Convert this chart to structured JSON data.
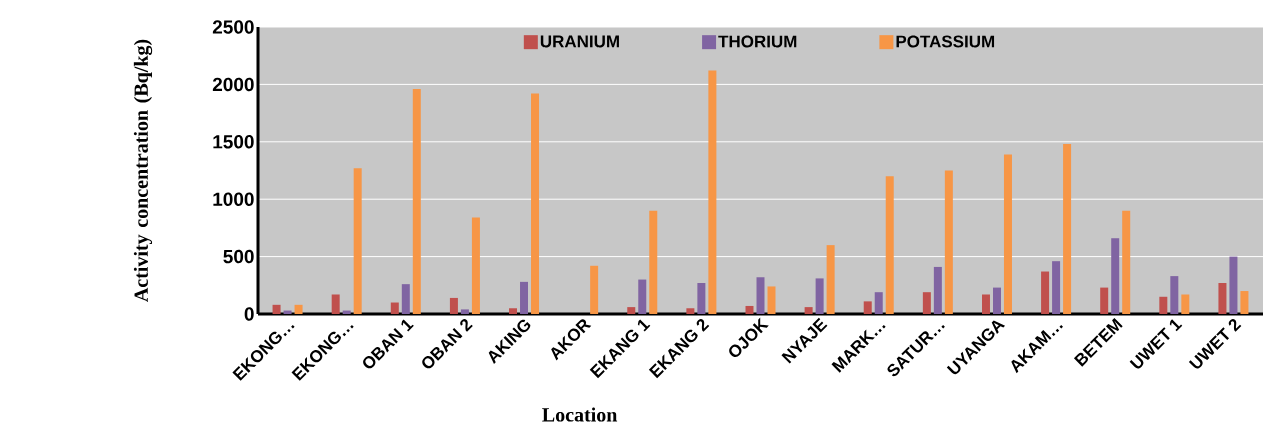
{
  "chart_data": {
    "type": "bar",
    "xlabel": "Location",
    "ylabel": "Activity  concentration (Bq/kg)",
    "categories": [
      "EKONG…",
      "EKONG…",
      "OBAN 1",
      "OBAN 2",
      "AKING",
      "AKOR",
      "EKANG 1",
      "EKANG 2",
      "OJOK",
      "NYAJE",
      "MARK…",
      "SATUR…",
      "UYANGA",
      "AKAM…",
      "BETEM",
      "UWET 1",
      "UWET 2"
    ],
    "series": [
      {
        "name": "URANIUM",
        "color": "#c0504d",
        "values": [
          80,
          170,
          100,
          140,
          50,
          0,
          60,
          50,
          70,
          60,
          110,
          190,
          170,
          370,
          230,
          150,
          270
        ]
      },
      {
        "name": "THORIUM",
        "color": "#8064a2",
        "values": [
          30,
          30,
          260,
          40,
          280,
          0,
          300,
          270,
          320,
          310,
          190,
          410,
          230,
          460,
          660,
          330,
          500
        ]
      },
      {
        "name": "POTASSIUM",
        "color": "#f79646",
        "values": [
          80,
          1270,
          1960,
          840,
          1920,
          420,
          900,
          2120,
          240,
          600,
          1200,
          1250,
          1390,
          1480,
          900,
          170,
          200
        ]
      }
    ],
    "ylim": [
      0,
      2500
    ],
    "yticks": [
      0,
      500,
      1000,
      1500,
      2000,
      2500
    ],
    "grid": "y",
    "legend": "top"
  }
}
